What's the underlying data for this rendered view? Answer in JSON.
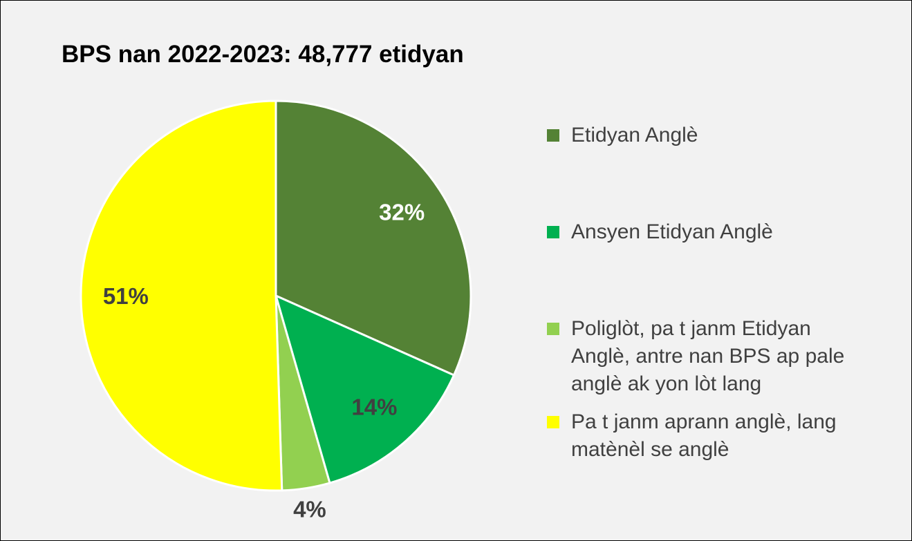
{
  "chart_data": {
    "type": "pie",
    "title": "BPS nan 2022-2023: 48,777 etidyan",
    "categories": [
      "Etidyan Anglè",
      "Ansyen Etidyan Anglè",
      "Poliglòt, pa t janm Etidyan Anglè, antre nan BPS ap pale anglè ak yon lòt lang",
      "Pa t janm aprann anglè, lang matènèl se anglè"
    ],
    "values": [
      32,
      14,
      4,
      51
    ],
    "value_labels": [
      "32%",
      "14%",
      "4%",
      "51%"
    ],
    "colors": [
      "#548235",
      "#00b050",
      "#92d050",
      "#ffff00"
    ],
    "label_colors": [
      "#ffffff",
      "#404040",
      "#404040",
      "#404040"
    ],
    "legend": "right"
  }
}
